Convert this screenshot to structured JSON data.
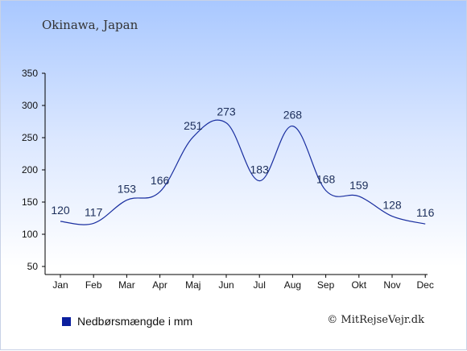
{
  "header": {
    "title": "Okinawa, Japan"
  },
  "legend": {
    "label": "Nedbørsmængde i mm",
    "color": "#0b1f9e"
  },
  "footer": {
    "copyright": "© MitRejseVejr.dk"
  },
  "style": {
    "line_color": "#1a2fa0",
    "axis_color": "#000000"
  },
  "chart_data": {
    "type": "line",
    "categories": [
      "Jan",
      "Feb",
      "Mar",
      "Apr",
      "Maj",
      "Jun",
      "Jul",
      "Aug",
      "Sep",
      "Okt",
      "Nov",
      "Dec"
    ],
    "series": [
      {
        "name": "Nedbørsmængde i mm",
        "values": [
          120,
          117,
          153,
          166,
          251,
          273,
          183,
          268,
          168,
          159,
          128,
          116
        ]
      }
    ],
    "yticks": [
      50,
      100,
      150,
      200,
      250,
      300,
      350
    ],
    "ylim": [
      40,
      350
    ],
    "grid": false,
    "legend_position": "bottom-left"
  }
}
